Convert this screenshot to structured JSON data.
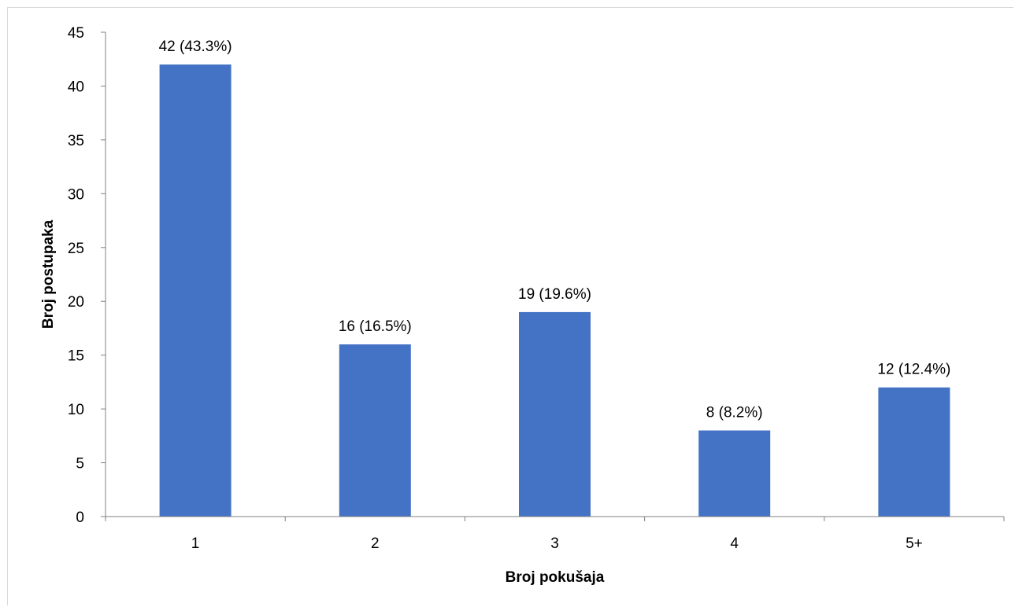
{
  "chart_data": {
    "type": "bar",
    "title": "",
    "xlabel": "Broj pokušaja",
    "ylabel": "Broj postupaka",
    "categories": [
      "1",
      "2",
      "3",
      "4",
      "5+"
    ],
    "values": [
      42,
      16,
      19,
      8,
      12
    ],
    "data_labels": [
      "42 (43.3%)",
      "16 (16.5%)",
      "19 (19.6%)",
      "8 (8.2%)",
      "12 (12.4%)"
    ],
    "ylim": [
      0,
      45
    ],
    "yticks": [
      0,
      5,
      10,
      15,
      20,
      25,
      30,
      35,
      40,
      45
    ],
    "grid": false,
    "legend": "none",
    "bar_color": "#4472c4"
  }
}
